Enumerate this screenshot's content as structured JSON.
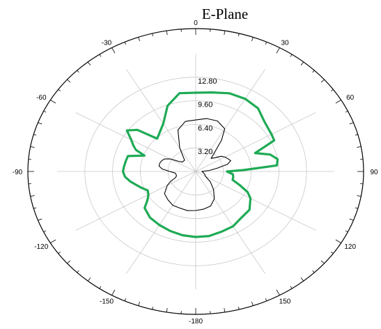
{
  "chart_data": {
    "type": "polar-line",
    "title": "E-Plane",
    "angle_labels": [
      "0",
      "30",
      "60",
      "90",
      "120",
      "150",
      "-180",
      "-150",
      "-120",
      "-90",
      "-60",
      "-30"
    ],
    "angle_label_values": [
      0,
      30,
      60,
      90,
      120,
      150,
      180,
      210,
      240,
      270,
      300,
      330
    ],
    "angle_range": [
      -180,
      180
    ],
    "radial_labels": [
      "3.20",
      "6.40",
      "9.60",
      "12.80"
    ],
    "radial_ticks": [
      3.2,
      6.4,
      9.6,
      12.8
    ],
    "radial_max": 16,
    "grid": true,
    "series": [
      {
        "color": "#1faa55",
        "points": [
          [
            0,
            10.7
          ],
          [
            10,
            10.9
          ],
          [
            20,
            11.3
          ],
          [
            30,
            11.4
          ],
          [
            40,
            11.2
          ],
          [
            50,
            10.4
          ],
          [
            60,
            10.1
          ],
          [
            65,
            10.0
          ],
          [
            70,
            7.3
          ],
          [
            75,
            8.9
          ],
          [
            80,
            9.6
          ],
          [
            85,
            9.4
          ],
          [
            88,
            5.5
          ],
          [
            90,
            3.6
          ],
          [
            95,
            4.3
          ],
          [
            100,
            4.4
          ],
          [
            105,
            4.4
          ],
          [
            110,
            5.4
          ],
          [
            115,
            6.6
          ],
          [
            120,
            7.3
          ],
          [
            130,
            8.1
          ],
          [
            140,
            8.2
          ],
          [
            150,
            8.6
          ],
          [
            160,
            8.7
          ],
          [
            170,
            8.9
          ],
          [
            180,
            8.9
          ],
          [
            190,
            8.8
          ],
          [
            200,
            8.6
          ],
          [
            210,
            8.4
          ],
          [
            220,
            8.2
          ],
          [
            230,
            7.7
          ],
          [
            235,
            6.8
          ],
          [
            240,
            6.3
          ],
          [
            245,
            6.1
          ],
          [
            250,
            6.6
          ],
          [
            255,
            7.1
          ],
          [
            260,
            7.7
          ],
          [
            265,
            8.2
          ],
          [
            270,
            8.4
          ],
          [
            275,
            8.3
          ],
          [
            280,
            8.2
          ],
          [
            285,
            8.1
          ],
          [
            290,
            6.3
          ],
          [
            293,
            7.5
          ],
          [
            296,
            8.0
          ],
          [
            300,
            8.6
          ],
          [
            305,
            9.7
          ],
          [
            310,
            8.8
          ],
          [
            315,
            6.3
          ],
          [
            320,
            6.6
          ],
          [
            330,
            7.5
          ],
          [
            340,
            9.5
          ],
          [
            350,
            10.8
          ],
          [
            360,
            10.7
          ]
        ]
      },
      {
        "color": "#000000",
        "points": [
          [
            0,
            7.0
          ],
          [
            10,
            7.3
          ],
          [
            20,
            7.3
          ],
          [
            30,
            6.7
          ],
          [
            35,
            5.2
          ],
          [
            40,
            3.4
          ],
          [
            45,
            2.5
          ],
          [
            50,
            2.9
          ],
          [
            55,
            3.6
          ],
          [
            60,
            3.9
          ],
          [
            65,
            4.1
          ],
          [
            70,
            4.3
          ],
          [
            75,
            3.8
          ],
          [
            80,
            2.5
          ],
          [
            85,
            1.6
          ],
          [
            90,
            0.7
          ],
          [
            100,
            0.9
          ],
          [
            110,
            1.1
          ],
          [
            120,
            1.3
          ],
          [
            130,
            2.2
          ],
          [
            140,
            3.2
          ],
          [
            150,
            4.3
          ],
          [
            160,
            5.0
          ],
          [
            170,
            5.2
          ],
          [
            180,
            5.3
          ],
          [
            190,
            5.4
          ],
          [
            200,
            5.3
          ],
          [
            210,
            5.3
          ],
          [
            220,
            5.0
          ],
          [
            230,
            4.7
          ],
          [
            240,
            3.8
          ],
          [
            245,
            3.2
          ],
          [
            250,
            2.5
          ],
          [
            255,
            2.3
          ],
          [
            260,
            2.3
          ],
          [
            265,
            2.4
          ],
          [
            270,
            3.0
          ],
          [
            275,
            3.9
          ],
          [
            280,
            4.3
          ],
          [
            285,
            4.3
          ],
          [
            290,
            4.2
          ],
          [
            295,
            4.0
          ],
          [
            300,
            3.4
          ],
          [
            305,
            2.4
          ],
          [
            310,
            2.0
          ],
          [
            320,
            2.0
          ],
          [
            330,
            3.7
          ],
          [
            340,
            6.0
          ],
          [
            350,
            6.9
          ],
          [
            360,
            7.0
          ]
        ]
      }
    ]
  }
}
